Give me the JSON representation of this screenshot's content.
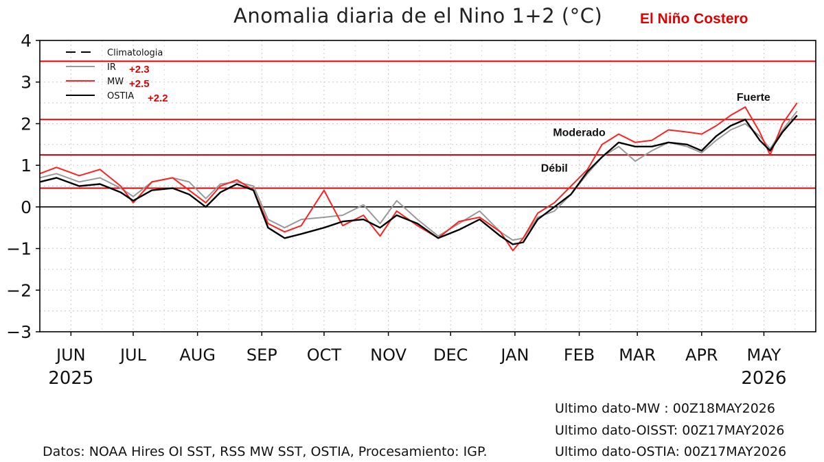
{
  "title": "Anomalia diaria de el Nino 1+2 (°C)",
  "brand_label": "El Niño Costero",
  "footer": "Datos: NOAA Hires OI SST, RSS MW SST, OSTIA, Procesamiento: IGP.",
  "last_data": [
    "Ultimo  dato-MW     :   00Z18MAY2026",
    "Ultimo  dato-OISST:   00Z17MAY2026",
    "Ultimo  dato-OSTIA:   00Z17MAY2026"
  ],
  "colors": {
    "accent_red": "#e00000",
    "mw": "#ff2020",
    "ir": "#999999",
    "ostia": "#000000"
  },
  "chart_data": {
    "type": "line",
    "title": "Anomalia diaria de el Nino 1+2 (°C)",
    "xlabel": "",
    "ylabel": "",
    "ylim": [
      -3,
      4
    ],
    "yticks": [
      -3,
      -2,
      -1,
      0,
      1,
      2,
      3,
      4
    ],
    "ytick_labels": [
      "−3",
      "−2",
      "−1",
      "0",
      "1",
      "2",
      "3",
      "4"
    ],
    "xlim": [
      "2025-05-17",
      "2026-05-26"
    ],
    "x_ticks": [
      "2025-06-01",
      "2025-07-01",
      "2025-08-01",
      "2025-09-01",
      "2025-10-01",
      "2025-11-01",
      "2025-12-01",
      "2026-01-01",
      "2026-02-01",
      "2026-03-01",
      "2026-04-01",
      "2026-05-01"
    ],
    "x_tick_labels": [
      "JUN",
      "JUL",
      "AUG",
      "SEP",
      "OCT",
      "NOV",
      "DEC",
      "JAN",
      "FEB",
      "MAR",
      "APR",
      "MAY"
    ],
    "year_labels": [
      {
        "x": "2025-06-01",
        "text": "2025"
      },
      {
        "x": "2026-05-01",
        "text": "2026"
      }
    ],
    "grid": true,
    "legend_position": "top-left",
    "legend": [
      {
        "name": "Climatologia",
        "style": "dashed",
        "color": "#000000",
        "value_label": ""
      },
      {
        "name": "IR",
        "style": "solid",
        "color": "#999999",
        "value_label": "+2.3"
      },
      {
        "name": "MW",
        "style": "solid",
        "color": "#ff2020",
        "value_label": "+2.5"
      },
      {
        "name": "OSTIA",
        "style": "solid",
        "color": "#000000",
        "value_label": "+2.2"
      }
    ],
    "thresholds": [
      {
        "y": 0.45,
        "color": "#e00000",
        "label": "Débil",
        "label_x": "2026-01-20",
        "label_y": 0.85
      },
      {
        "y": 1.25,
        "color": "#e00000",
        "label": "Moderado",
        "label_x": "2026-02-01",
        "label_y": 1.7
      },
      {
        "y": 2.1,
        "color": "#e00000",
        "label": "Fuerte",
        "label_x": "2026-04-26",
        "label_y": 2.55
      },
      {
        "y": 3.5,
        "color": "#e00000",
        "label": "",
        "label_x": "",
        "label_y": 0
      }
    ],
    "series": [
      {
        "name": "OSTIA",
        "color": "#000000",
        "width": 2.4,
        "x": [
          "2025-05-17",
          "2025-05-25",
          "2025-06-05",
          "2025-06-15",
          "2025-06-25",
          "2025-07-01",
          "2025-07-10",
          "2025-07-20",
          "2025-07-28",
          "2025-08-05",
          "2025-08-12",
          "2025-08-20",
          "2025-08-28",
          "2025-09-04",
          "2025-09-12",
          "2025-09-20",
          "2025-10-01",
          "2025-10-10",
          "2025-10-20",
          "2025-10-28",
          "2025-11-05",
          "2025-11-15",
          "2025-11-25",
          "2025-12-05",
          "2025-12-15",
          "2025-12-25",
          "2025-12-31",
          "2026-01-05",
          "2026-01-12",
          "2026-01-20",
          "2026-01-28",
          "2026-02-05",
          "2026-02-12",
          "2026-02-20",
          "2026-02-28",
          "2026-03-08",
          "2026-03-16",
          "2026-03-25",
          "2026-04-01",
          "2026-04-08",
          "2026-04-15",
          "2026-04-22",
          "2026-04-29",
          "2026-05-04",
          "2026-05-10",
          "2026-05-17"
        ],
        "y": [
          0.6,
          0.7,
          0.5,
          0.55,
          0.35,
          0.15,
          0.4,
          0.45,
          0.3,
          0.0,
          0.35,
          0.55,
          0.4,
          -0.5,
          -0.75,
          -0.65,
          -0.5,
          -0.35,
          -0.3,
          -0.5,
          -0.2,
          -0.4,
          -0.75,
          -0.55,
          -0.3,
          -0.7,
          -0.9,
          -0.85,
          -0.3,
          0.0,
          0.3,
          0.85,
          1.2,
          1.55,
          1.45,
          1.45,
          1.55,
          1.5,
          1.35,
          1.7,
          1.95,
          2.1,
          1.6,
          1.35,
          1.8,
          2.2
        ]
      },
      {
        "name": "MW",
        "color": "#ff2020",
        "width": 2.0,
        "x": [
          "2025-05-17",
          "2025-05-25",
          "2025-06-05",
          "2025-06-15",
          "2025-06-25",
          "2025-07-01",
          "2025-07-10",
          "2025-07-20",
          "2025-07-28",
          "2025-08-05",
          "2025-08-12",
          "2025-08-20",
          "2025-08-28",
          "2025-09-04",
          "2025-09-12",
          "2025-09-20",
          "2025-10-01",
          "2025-10-10",
          "2025-10-20",
          "2025-10-28",
          "2025-11-05",
          "2025-11-15",
          "2025-11-25",
          "2025-12-05",
          "2025-12-15",
          "2025-12-25",
          "2025-12-31",
          "2026-01-05",
          "2026-01-12",
          "2026-01-20",
          "2026-01-28",
          "2026-02-05",
          "2026-02-12",
          "2026-02-20",
          "2026-02-28",
          "2026-03-08",
          "2026-03-16",
          "2026-03-25",
          "2026-04-01",
          "2026-04-08",
          "2026-04-15",
          "2026-04-22",
          "2026-04-29",
          "2026-05-04",
          "2026-05-10",
          "2026-05-17"
        ],
        "y": [
          0.8,
          0.95,
          0.75,
          0.9,
          0.5,
          0.1,
          0.6,
          0.7,
          0.4,
          0.1,
          0.5,
          0.65,
          0.4,
          -0.4,
          -0.6,
          -0.45,
          0.4,
          -0.45,
          -0.2,
          -0.7,
          -0.1,
          -0.45,
          -0.75,
          -0.35,
          -0.25,
          -0.6,
          -1.05,
          -0.75,
          -0.15,
          0.1,
          0.5,
          0.9,
          1.5,
          1.75,
          1.55,
          1.6,
          1.85,
          1.8,
          1.75,
          1.95,
          2.2,
          2.4,
          1.8,
          1.25,
          2.0,
          2.5
        ]
      },
      {
        "name": "IR",
        "color": "#999999",
        "width": 2.0,
        "x": [
          "2025-05-17",
          "2025-05-25",
          "2025-06-05",
          "2025-06-15",
          "2025-06-25",
          "2025-07-01",
          "2025-07-10",
          "2025-07-20",
          "2025-07-28",
          "2025-08-05",
          "2025-08-12",
          "2025-08-20",
          "2025-08-28",
          "2025-09-04",
          "2025-09-12",
          "2025-09-20",
          "2025-10-01",
          "2025-10-10",
          "2025-10-20",
          "2025-10-28",
          "2025-11-05",
          "2025-11-15",
          "2025-11-25",
          "2025-12-05",
          "2025-12-15",
          "2025-12-25",
          "2025-12-31",
          "2026-01-05",
          "2026-01-12",
          "2026-01-20",
          "2026-01-28",
          "2026-02-05",
          "2026-02-12",
          "2026-02-20",
          "2026-02-28",
          "2026-03-08",
          "2026-03-16",
          "2026-03-25",
          "2026-04-01",
          "2026-04-08",
          "2026-04-15",
          "2026-04-22",
          "2026-04-29",
          "2026-05-04",
          "2026-05-10",
          "2026-05-17"
        ],
        "y": [
          0.7,
          0.8,
          0.6,
          0.7,
          0.45,
          0.25,
          0.6,
          0.7,
          0.6,
          0.2,
          0.55,
          0.6,
          0.5,
          -0.3,
          -0.5,
          -0.3,
          -0.25,
          -0.2,
          0.05,
          -0.4,
          0.15,
          -0.3,
          -0.7,
          -0.4,
          -0.1,
          -0.6,
          -0.8,
          -0.75,
          -0.25,
          -0.1,
          0.3,
          0.8,
          1.2,
          1.45,
          1.1,
          1.35,
          1.55,
          1.45,
          1.3,
          1.6,
          1.85,
          2.0,
          1.7,
          1.4,
          1.85,
          2.3
        ]
      }
    ]
  }
}
